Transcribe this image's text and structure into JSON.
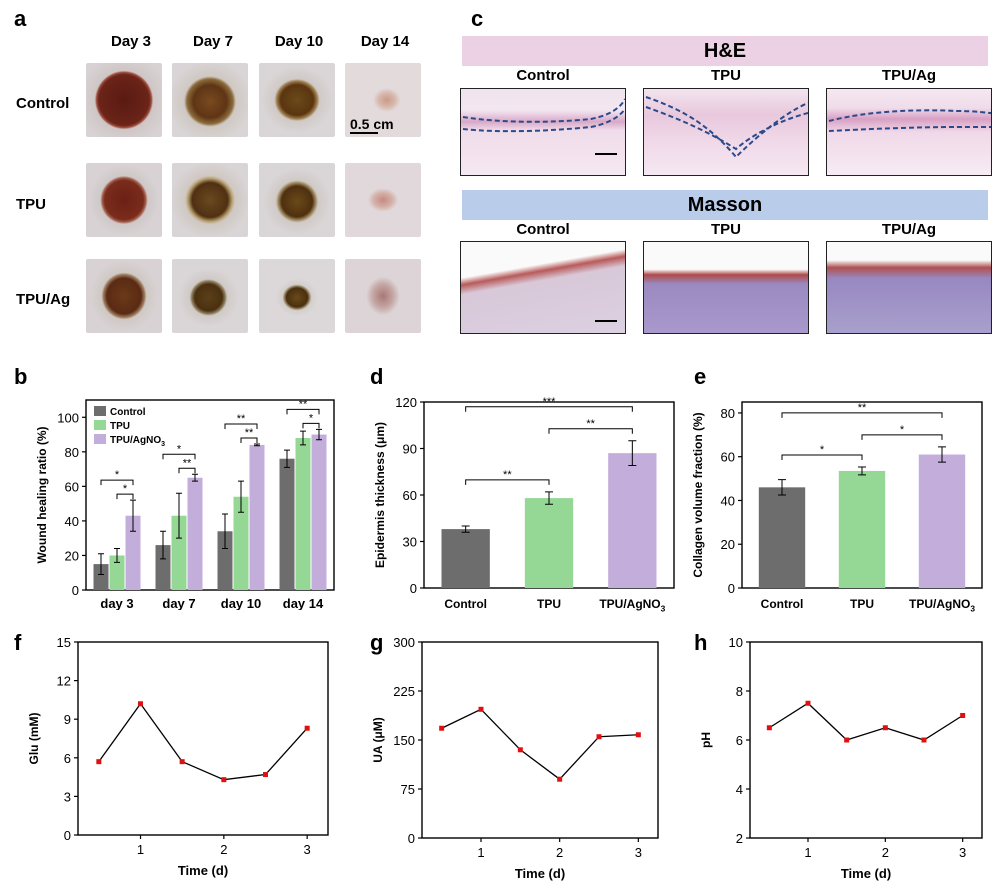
{
  "panel_labels": {
    "a": "a",
    "b": "b",
    "c": "c",
    "d": "d",
    "e": "e",
    "f": "f",
    "g": "g",
    "h": "h"
  },
  "panel_a": {
    "days": [
      "Day 3",
      "Day 7",
      "Day 10",
      "Day 14"
    ],
    "groups": [
      "Control",
      "TPU",
      "TPU/Ag"
    ],
    "scale_bar": "0.5 cm"
  },
  "panel_c": {
    "he_title": "H&E",
    "masson_title": "Masson",
    "groups": [
      "Control",
      "TPU",
      "TPU/Ag"
    ]
  },
  "colors": {
    "control": "#6d6d6d",
    "tpu": "#95d795",
    "ag": "#c3aedb",
    "he_band": "#ecd0e3",
    "masson_band": "#b9cdea"
  },
  "chart_data": [
    {
      "id": "b",
      "type": "bar",
      "title": "",
      "categories": [
        "day 3",
        "day 7",
        "day 10",
        "day 14"
      ],
      "series": [
        {
          "name": "Control",
          "values": [
            15,
            26,
            34,
            76
          ],
          "errors": [
            6,
            8,
            10,
            5
          ]
        },
        {
          "name": "TPU",
          "values": [
            20,
            43,
            54,
            88
          ],
          "errors": [
            4,
            13,
            9,
            4
          ]
        },
        {
          "name": "TPU/AgNO",
          "values": [
            43,
            65,
            84,
            90
          ],
          "errors": [
            9,
            2,
            0.5,
            3
          ]
        }
      ],
      "legend": [
        "Control",
        "TPU",
        "TPU/AgNO3"
      ],
      "legend_base": "TPU/AgNO",
      "legend_sub": "3",
      "xlabel": "",
      "ylabel": "Wound healing ratio (%)",
      "ylim": [
        0,
        110
      ],
      "yticks": [
        0,
        20,
        40,
        60,
        80,
        100
      ],
      "significance": [
        "*",
        "*",
        "**",
        "*",
        "**",
        "**",
        "*",
        "**"
      ]
    },
    {
      "id": "d",
      "type": "bar",
      "categories": [
        "Control",
        "TPU",
        "TPU/AgNO3"
      ],
      "cat_base": "TPU/AgNO",
      "cat_sub": "3",
      "values": [
        38,
        58,
        87
      ],
      "errors": [
        2,
        4,
        8
      ],
      "ylabel": "Epidermis thickness (μm)",
      "ylim": [
        0,
        120
      ],
      "yticks": [
        0,
        30,
        60,
        90,
        120
      ],
      "significance": [
        "**",
        "**",
        "***"
      ]
    },
    {
      "id": "e",
      "type": "bar",
      "categories": [
        "Control",
        "TPU",
        "TPU/AgNO3"
      ],
      "cat_base": "TPU/AgNO",
      "cat_sub": "3",
      "values": [
        46,
        53.5,
        61
      ],
      "errors": [
        3.5,
        1.8,
        3.5
      ],
      "ylabel": "Collagen volume fraction (%)",
      "ylim": [
        0,
        85
      ],
      "yticks": [
        0,
        20,
        40,
        60,
        80
      ],
      "significance": [
        "*",
        "*",
        "**"
      ]
    },
    {
      "id": "f",
      "type": "line",
      "x": [
        0.5,
        1,
        1.5,
        2,
        2.5,
        3
      ],
      "y": [
        5.7,
        10.2,
        5.7,
        4.3,
        4.7,
        8.3
      ],
      "xlabel": "Time (d)",
      "ylabel": "Glu (mM)",
      "xlim": [
        0.25,
        3.25
      ],
      "xticks": [
        1,
        2,
        3
      ],
      "ylim": [
        0,
        15
      ],
      "yticks": [
        0,
        3,
        6,
        9,
        12,
        15
      ]
    },
    {
      "id": "g",
      "type": "line",
      "x": [
        0.5,
        1,
        1.5,
        2,
        2.5,
        3
      ],
      "y": [
        168,
        197,
        135,
        90,
        155,
        158
      ],
      "xlabel": "Time (d)",
      "ylabel": "UA (μM)",
      "xlim": [
        0.25,
        3.25
      ],
      "xticks": [
        1,
        2,
        3
      ],
      "ylim": [
        0,
        300
      ],
      "yticks": [
        0,
        75,
        150,
        225,
        300
      ]
    },
    {
      "id": "h",
      "type": "line",
      "x": [
        0.5,
        1,
        1.5,
        2,
        2.5,
        3
      ],
      "y": [
        6.5,
        7.5,
        6.0,
        6.5,
        6.0,
        7.0
      ],
      "xlabel": "Time (d)",
      "ylabel": "pH",
      "xlim": [
        0.25,
        3.25
      ],
      "xticks": [
        1,
        2,
        3
      ],
      "ylim": [
        2,
        10
      ],
      "yticks": [
        2,
        4,
        6,
        8,
        10
      ]
    }
  ]
}
